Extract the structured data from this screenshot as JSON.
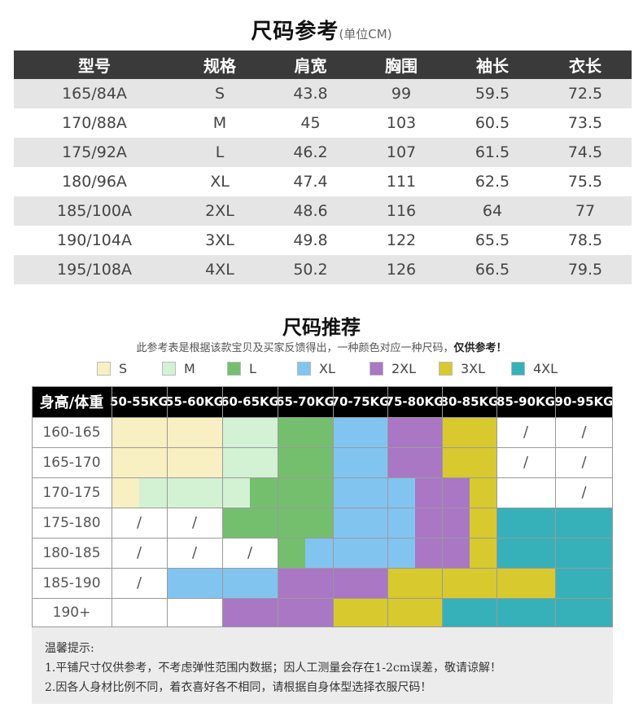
{
  "size_reference": {
    "title": "尺码参考",
    "unit": "(单位CM)",
    "headers": [
      "型号",
      "规格",
      "肩宽",
      "胸围",
      "袖长",
      "衣长"
    ],
    "rows": [
      [
        "165/84A",
        "S",
        "43.8",
        "99",
        "59.5",
        "72.5"
      ],
      [
        "170/88A",
        "M",
        "45",
        "103",
        "60.5",
        "73.5"
      ],
      [
        "175/92A",
        "L",
        "46.2",
        "107",
        "61.5",
        "74.5"
      ],
      [
        "180/96A",
        "XL",
        "47.4",
        "111",
        "62.5",
        "75.5"
      ],
      [
        "185/100A",
        "2XL",
        "48.6",
        "116",
        "64",
        "77"
      ],
      [
        "190/104A",
        "3XL",
        "49.8",
        "122",
        "65.5",
        "78.5"
      ],
      [
        "195/108A",
        "4XL",
        "50.2",
        "126",
        "66.5",
        "79.5"
      ]
    ]
  },
  "recommendation": {
    "title": "尺码推荐",
    "subtitle": "此参考表是根据该款宝贝及买家反馈得出，一种颜色对应一种尺码，",
    "subtitle_bold": "仅供参考！",
    "legend": [
      {
        "label": "S",
        "color": "#f8efc2"
      },
      {
        "label": "M",
        "color": "#d3f1d3"
      },
      {
        "label": "L",
        "color": "#74bf6e"
      },
      {
        "label": "XL",
        "color": "#82c4f0"
      },
      {
        "label": "2XL",
        "color": "#a977c4"
      },
      {
        "label": "3XL",
        "color": "#d8c92e"
      },
      {
        "label": "4XL",
        "color": "#36b1ba"
      }
    ],
    "corner_header": "身高/体重",
    "weight_headers": [
      "50-55KG",
      "55-60KG",
      "60-65KG",
      "65-70KG",
      "70-75KG",
      "75-80KG",
      "80-85KG",
      "85-90KG",
      "90-95KG"
    ],
    "height_rows": [
      {
        "label": "160-165",
        "cells": [
          "S",
          "S",
          "M",
          "L",
          "XL",
          "2XL",
          "3XL",
          "/",
          "/"
        ]
      },
      {
        "label": "165-170",
        "cells": [
          "S",
          "S",
          "M",
          "L",
          "XL",
          "2XL",
          "3XL",
          "/",
          "/"
        ]
      },
      {
        "label": "170-175",
        "cells": [
          "S|M",
          "M",
          "M|L",
          "L",
          "XL",
          "XL|2XL",
          "2XL|3XL",
          "",
          "/"
        ]
      },
      {
        "label": "175-180",
        "cells": [
          "/",
          "/",
          "L",
          "L",
          "XL",
          "XL|2XL",
          "2XL|3XL",
          "4XL",
          "4XL"
        ]
      },
      {
        "label": "180-185",
        "cells": [
          "/",
          "/",
          "/",
          "L|XL",
          "XL",
          "XL|2XL",
          "2XL|3XL",
          "4XL",
          "4XL"
        ]
      },
      {
        "label": "185-190",
        "cells": [
          "/",
          "XL",
          "XL",
          "2XL",
          "2XL",
          "3XL",
          "3XL",
          "3XL",
          "4XL"
        ]
      },
      {
        "label": "190+",
        "cells": [
          "",
          "",
          "2XL",
          "2XL",
          "3XL",
          "3XL",
          "4XL",
          "4XL",
          "4XL"
        ]
      }
    ]
  },
  "notes": {
    "heading": "温馨提示:",
    "lines": [
      "1.平铺尺寸仅供参考，不考虑弹性范围内数据；因人工测量会存在1-2cm误差，敬请谅解！",
      "2.因各人身材比例不同，着衣喜好各不相同，请根据自身体型选择衣服尺码！"
    ]
  }
}
